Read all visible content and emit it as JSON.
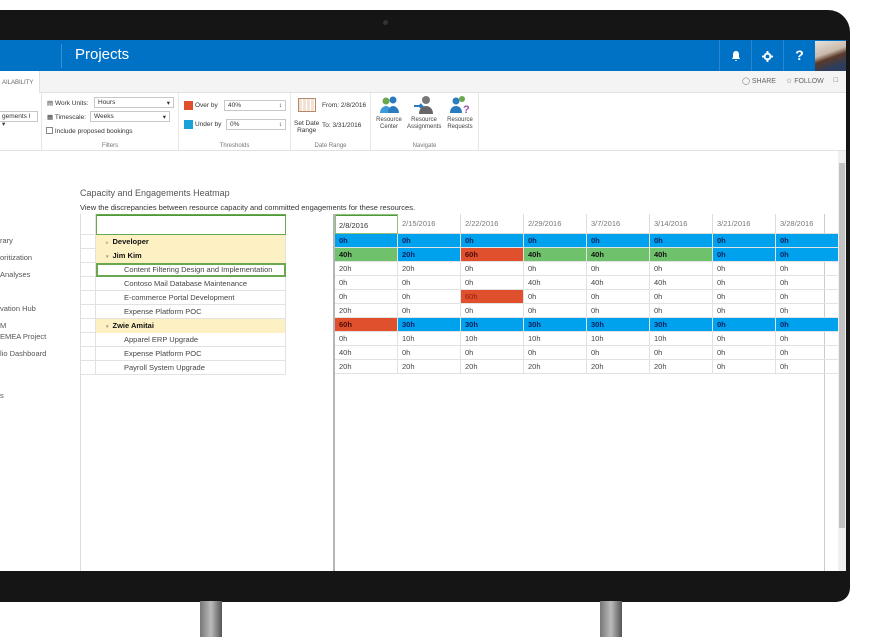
{
  "suite_bar": {
    "title": "Projects",
    "bell_icon": "♪",
    "gear_icon": "⚙",
    "help_label": "?"
  },
  "tabbar": {
    "active_tab": "AILABILITY",
    "share_label": "SHARE",
    "follow_label": "FOLLOW"
  },
  "ribbon": {
    "view_select": "gements I",
    "filters": {
      "work_units_label": "Work Units:",
      "work_units_value": "Hours",
      "timescale_label": "Timescale:",
      "timescale_value": "Weeks",
      "include_proposed_label": "Include proposed bookings",
      "group_label": "Filters"
    },
    "thresholds": {
      "over_label": "Over by",
      "over_value": "40%",
      "under_label": "Under by",
      "under_value": "0%",
      "group_label": "Thresholds",
      "over_color": "#e1502d",
      "under_color": "#1ba1d8"
    },
    "date_range": {
      "set_label_1": "Set Date",
      "set_label_2": "Range",
      "from": "From: 2/8/2016",
      "to": "To: 3/31/2016",
      "group_label": "Date Range"
    },
    "navigate": {
      "buttons": [
        {
          "l1": "Resource",
          "l2": "Center"
        },
        {
          "l1": "Resource",
          "l2": "Assignments"
        },
        {
          "l1": "Resource",
          "l2": "Requests"
        }
      ],
      "group_label": "Navigate"
    }
  },
  "left_nav": {
    "items": [
      "rary",
      "oritization",
      "Analyses",
      "vation Hub",
      "M",
      "EMEA Project",
      "lio Dashboard",
      "s"
    ]
  },
  "heatmap": {
    "title": "Capacity and Engagements Heatmap",
    "subtitle": "View the discrepancies between resource capacity and committed engagements for these resources.",
    "rows": [
      {
        "label": "Developer",
        "type": "group",
        "expander": "▹"
      },
      {
        "label": "Jim Kim",
        "type": "group",
        "expander": "▾"
      },
      {
        "label": "Content Filtering Design and Implementation",
        "type": "item",
        "selected": true
      },
      {
        "label": "Contoso Mail Database Maintenance",
        "type": "item"
      },
      {
        "label": "E-commerce Portal Development",
        "type": "item"
      },
      {
        "label": "Expense Platform POC",
        "type": "item"
      },
      {
        "label": "Zwie Amitai",
        "type": "group",
        "expander": "▾"
      },
      {
        "label": "Apparel ERP Upgrade",
        "type": "item"
      },
      {
        "label": "Expense Platform POC",
        "type": "item"
      },
      {
        "label": "Payroll System Upgrade",
        "type": "item"
      }
    ],
    "columns": [
      "2/8/2016",
      "2/15/2016",
      "2/22/2016",
      "2/29/2016",
      "3/7/2016",
      "3/14/2016",
      "3/21/2016",
      "3/28/2016"
    ],
    "colors": {
      "under": "#00a2ed",
      "ok": "#70c16b",
      "over": "#e1502d"
    },
    "cells": [
      [
        {
          "v": "0h",
          "c": "under"
        },
        {
          "v": "0h",
          "c": "under"
        },
        {
          "v": "0h",
          "c": "under"
        },
        {
          "v": "0h",
          "c": "under"
        },
        {
          "v": "0h",
          "c": "under"
        },
        {
          "v": "0h",
          "c": "under"
        },
        {
          "v": "0h",
          "c": "under"
        },
        {
          "v": "0h",
          "c": "under"
        }
      ],
      [
        {
          "v": "40h",
          "c": "ok"
        },
        {
          "v": "20h",
          "c": "under"
        },
        {
          "v": "60h",
          "c": "over"
        },
        {
          "v": "40h",
          "c": "ok"
        },
        {
          "v": "40h",
          "c": "ok"
        },
        {
          "v": "40h",
          "c": "ok"
        },
        {
          "v": "0h",
          "c": "under"
        },
        {
          "v": "0h",
          "c": "under"
        }
      ],
      [
        {
          "v": "20h"
        },
        {
          "v": "20h"
        },
        {
          "v": "0h"
        },
        {
          "v": "0h"
        },
        {
          "v": "0h"
        },
        {
          "v": "0h"
        },
        {
          "v": "0h"
        },
        {
          "v": "0h"
        }
      ],
      [
        {
          "v": "0h"
        },
        {
          "v": "0h"
        },
        {
          "v": "0h"
        },
        {
          "v": "40h"
        },
        {
          "v": "40h"
        },
        {
          "v": "40h"
        },
        {
          "v": "0h"
        },
        {
          "v": "0h"
        }
      ],
      [
        {
          "v": "0h"
        },
        {
          "v": "0h"
        },
        {
          "v": "60h",
          "c": "over"
        },
        {
          "v": "0h"
        },
        {
          "v": "0h"
        },
        {
          "v": "0h"
        },
        {
          "v": "0h"
        },
        {
          "v": "0h"
        }
      ],
      [
        {
          "v": "20h"
        },
        {
          "v": "0h"
        },
        {
          "v": "0h"
        },
        {
          "v": "0h"
        },
        {
          "v": "0h"
        },
        {
          "v": "0h"
        },
        {
          "v": "0h"
        },
        {
          "v": "0h"
        }
      ],
      [
        {
          "v": "60h",
          "c": "over"
        },
        {
          "v": "30h",
          "c": "under"
        },
        {
          "v": "30h",
          "c": "under"
        },
        {
          "v": "30h",
          "c": "under"
        },
        {
          "v": "30h",
          "c": "under"
        },
        {
          "v": "30h",
          "c": "under"
        },
        {
          "v": "0h",
          "c": "under"
        },
        {
          "v": "0h",
          "c": "under"
        }
      ],
      [
        {
          "v": "0h"
        },
        {
          "v": "10h"
        },
        {
          "v": "10h"
        },
        {
          "v": "10h"
        },
        {
          "v": "10h"
        },
        {
          "v": "10h"
        },
        {
          "v": "0h"
        },
        {
          "v": "0h"
        }
      ],
      [
        {
          "v": "40h"
        },
        {
          "v": "0h"
        },
        {
          "v": "0h"
        },
        {
          "v": "0h"
        },
        {
          "v": "0h"
        },
        {
          "v": "0h"
        },
        {
          "v": "0h"
        },
        {
          "v": "0h"
        }
      ],
      [
        {
          "v": "20h"
        },
        {
          "v": "20h"
        },
        {
          "v": "20h"
        },
        {
          "v": "20h"
        },
        {
          "v": "20h"
        },
        {
          "v": "20h"
        },
        {
          "v": "0h"
        },
        {
          "v": "0h"
        }
      ]
    ]
  }
}
